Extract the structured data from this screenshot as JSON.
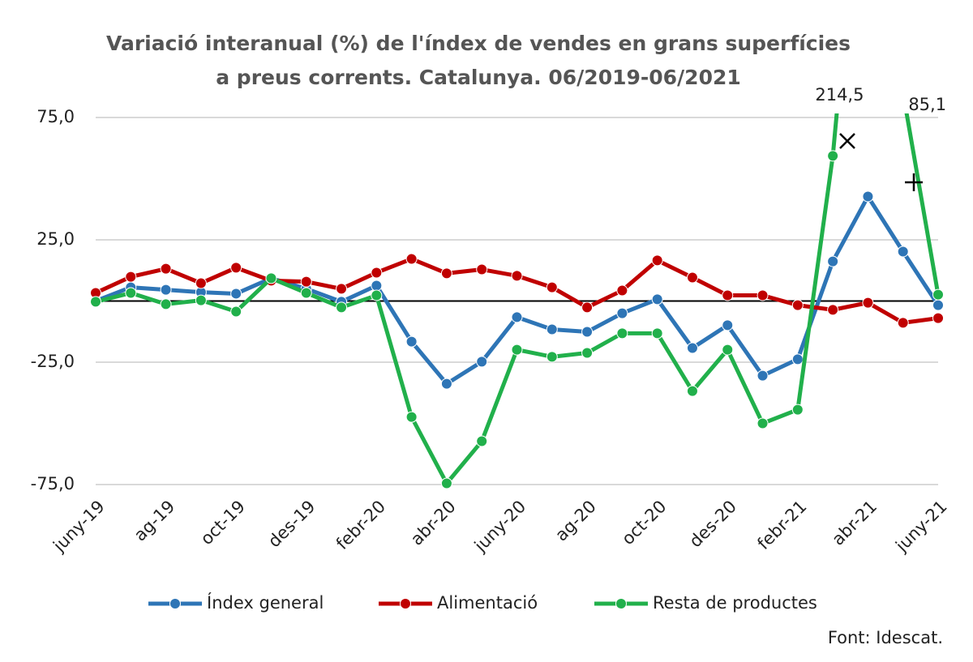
{
  "chart_data": {
    "type": "line",
    "title": [
      "Variació interanual (%) de l'índex de vendes en grans superfícies",
      "a preus corrents. Catalunya. 06/2019-06/2021"
    ],
    "categories": [
      "juny-19",
      null,
      "ag-19",
      null,
      "oct-19",
      null,
      "des-19",
      null,
      "febr-20",
      null,
      "abr-20",
      null,
      "juny-20",
      null,
      "ag-20",
      null,
      "oct-20",
      null,
      "des-20",
      null,
      "febr-21",
      null,
      "abr-21",
      null,
      "juny-21"
    ],
    "ylim": [
      -75,
      75
    ],
    "yticks": [
      {
        "value": 75,
        "label": "75,0"
      },
      {
        "value": 25,
        "label": "25,0"
      },
      {
        "value": -25,
        "label": "-25,0"
      },
      {
        "value": -75,
        "label": "-75,0"
      }
    ],
    "grid": true,
    "series": [
      {
        "name": "Índex general",
        "color": "#2e75b6",
        "values": [
          0,
          5.6,
          4.6,
          3.6,
          3,
          9.3,
          5,
          -0.3,
          6.3,
          -16.6,
          -33.8,
          -24.8,
          -6.6,
          -11.6,
          -12.6,
          -5,
          0.7,
          -19.2,
          -9.9,
          -30.5,
          -23.8,
          16.2,
          42.7,
          20.2,
          -1.7
        ]
      },
      {
        "name": "Alimentació",
        "color": "#c00000",
        "values": [
          3.3,
          9.9,
          13.2,
          7.3,
          13.6,
          8.3,
          7.9,
          5,
          11.6,
          17.2,
          11.3,
          12.9,
          10.3,
          5.6,
          -2.6,
          4.3,
          16.6,
          9.6,
          2.3,
          2.3,
          -1.7,
          -3.6,
          -0.7,
          -8.9,
          -7
        ]
      },
      {
        "name": "Resta de productes",
        "color": "#21b04b",
        "values": [
          -0.3,
          3.3,
          -1.3,
          0.3,
          -4.3,
          9.3,
          3.3,
          -2.6,
          2.3,
          -47.4,
          -74.5,
          -57.3,
          -19.9,
          -22.8,
          -21.2,
          -13.2,
          -13.2,
          -36.8,
          -19.9,
          -50,
          -44.4,
          59.3,
          214.5,
          85.1,
          2.6
        ],
        "value_labels": [
          null,
          null,
          null,
          null,
          null,
          null,
          null,
          null,
          null,
          null,
          null,
          null,
          null,
          null,
          null,
          null,
          null,
          null,
          null,
          null,
          null,
          null,
          "214,5",
          "85,1",
          null
        ]
      }
    ],
    "source": "Font: Idescat."
  }
}
